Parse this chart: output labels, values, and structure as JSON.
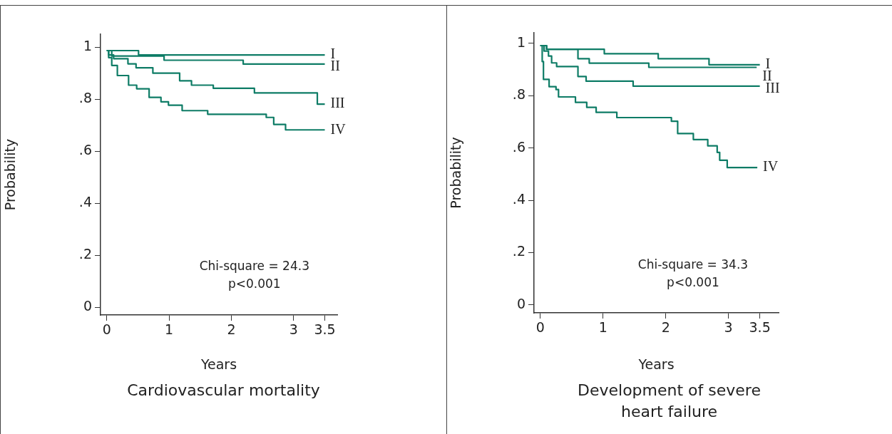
{
  "chart_data": [
    {
      "type": "step",
      "title": "Cardiovascular mortality",
      "xlabel": "Years",
      "ylabel": "Probability",
      "xlim": [
        -0.1,
        3.7
      ],
      "xticks": [
        0,
        1,
        2,
        3,
        3.5
      ],
      "ylim": [
        -0.03,
        1.05
      ],
      "yticks": [
        {
          "value": 0,
          "label": "0"
        },
        {
          "value": 0.2,
          "label": ".2"
        },
        {
          "value": 0.4,
          "label": ".4"
        },
        {
          "value": 0.6,
          "label": ".6"
        },
        {
          "value": 0.8,
          "label": ".8"
        },
        {
          "value": 1,
          "label": "1"
        }
      ],
      "annotations": [
        "Chi-square = 24.3",
        "p<0.001"
      ],
      "series": [
        {
          "name": "I",
          "color": "#0e7c66",
          "x": [
            0,
            0.51,
            3.5
          ],
          "values": [
            0.987,
            0.97,
            0.97
          ]
        },
        {
          "name": "II",
          "color": "#0e7c66",
          "x": [
            0,
            0.08,
            0.92,
            2.19,
            3.5
          ],
          "values": [
            0.987,
            0.966,
            0.95,
            0.935,
            0.935
          ]
        },
        {
          "name": "III",
          "color": "#0e7c66",
          "x": [
            0,
            0.03,
            0.11,
            0.34,
            0.47,
            0.74,
            1.17,
            1.36,
            1.71,
            2.37,
            3.38,
            3.5
          ],
          "values": [
            0.987,
            0.97,
            0.956,
            0.936,
            0.921,
            0.9,
            0.871,
            0.854,
            0.842,
            0.824,
            0.781,
            0.781
          ]
        },
        {
          "name": "IV",
          "color": "#0e7c66",
          "x": [
            0,
            0.03,
            0.08,
            0.17,
            0.35,
            0.48,
            0.68,
            0.87,
            0.99,
            1.21,
            1.62,
            2.56,
            2.68,
            2.87,
            3.5
          ],
          "values": [
            0.987,
            0.96,
            0.93,
            0.891,
            0.854,
            0.84,
            0.807,
            0.79,
            0.777,
            0.756,
            0.742,
            0.73,
            0.703,
            0.682,
            0.682
          ]
        }
      ]
    },
    {
      "type": "step",
      "title": "Development of severe heart failure",
      "xlabel": "Years",
      "ylabel": "Probability",
      "xlim": [
        -0.1,
        3.8
      ],
      "xticks": [
        0,
        1,
        2,
        3,
        3.5
      ],
      "ylim": [
        -0.03,
        1.04
      ],
      "yticks": [
        {
          "value": 0,
          "label": "0"
        },
        {
          "value": 0.2,
          "label": ".2"
        },
        {
          "value": 0.4,
          "label": ".4"
        },
        {
          "value": 0.6,
          "label": ".6"
        },
        {
          "value": 0.8,
          "label": ".8"
        },
        {
          "value": 1,
          "label": "1"
        }
      ],
      "annotations": [
        "Chi-square = 34.3",
        "p<0.001"
      ],
      "series": [
        {
          "name": "I",
          "color": "#0e7c66",
          "x": [
            0,
            0.1,
            1.02,
            1.88,
            2.69,
            3.5
          ],
          "values": [
            0.991,
            0.977,
            0.96,
            0.941,
            0.918,
            0.918
          ]
        },
        {
          "name": "II",
          "color": "#0e7c66",
          "x": [
            0,
            0.1,
            0.6,
            0.78,
            1.73,
            3.45
          ],
          "values": [
            0.991,
            0.977,
            0.941,
            0.924,
            0.908,
            0.908
          ]
        },
        {
          "name": "III",
          "color": "#0e7c66",
          "x": [
            0,
            0.06,
            0.13,
            0.18,
            0.26,
            0.6,
            0.73,
            1.48,
            3.5
          ],
          "values": [
            0.991,
            0.97,
            0.951,
            0.925,
            0.911,
            0.873,
            0.855,
            0.836,
            0.836
          ]
        },
        {
          "name": "IV",
          "color": "#0e7c66",
          "x": [
            0,
            0.03,
            0.05,
            0.14,
            0.25,
            0.29,
            0.56,
            0.74,
            0.89,
            1.22,
            2.09,
            2.19,
            2.44,
            2.67,
            2.82,
            2.86,
            2.98,
            3.46
          ],
          "values": [
            0.991,
            0.93,
            0.862,
            0.834,
            0.823,
            0.795,
            0.774,
            0.755,
            0.736,
            0.716,
            0.702,
            0.655,
            0.632,
            0.608,
            0.583,
            0.553,
            0.525,
            0.525
          ]
        }
      ]
    }
  ]
}
